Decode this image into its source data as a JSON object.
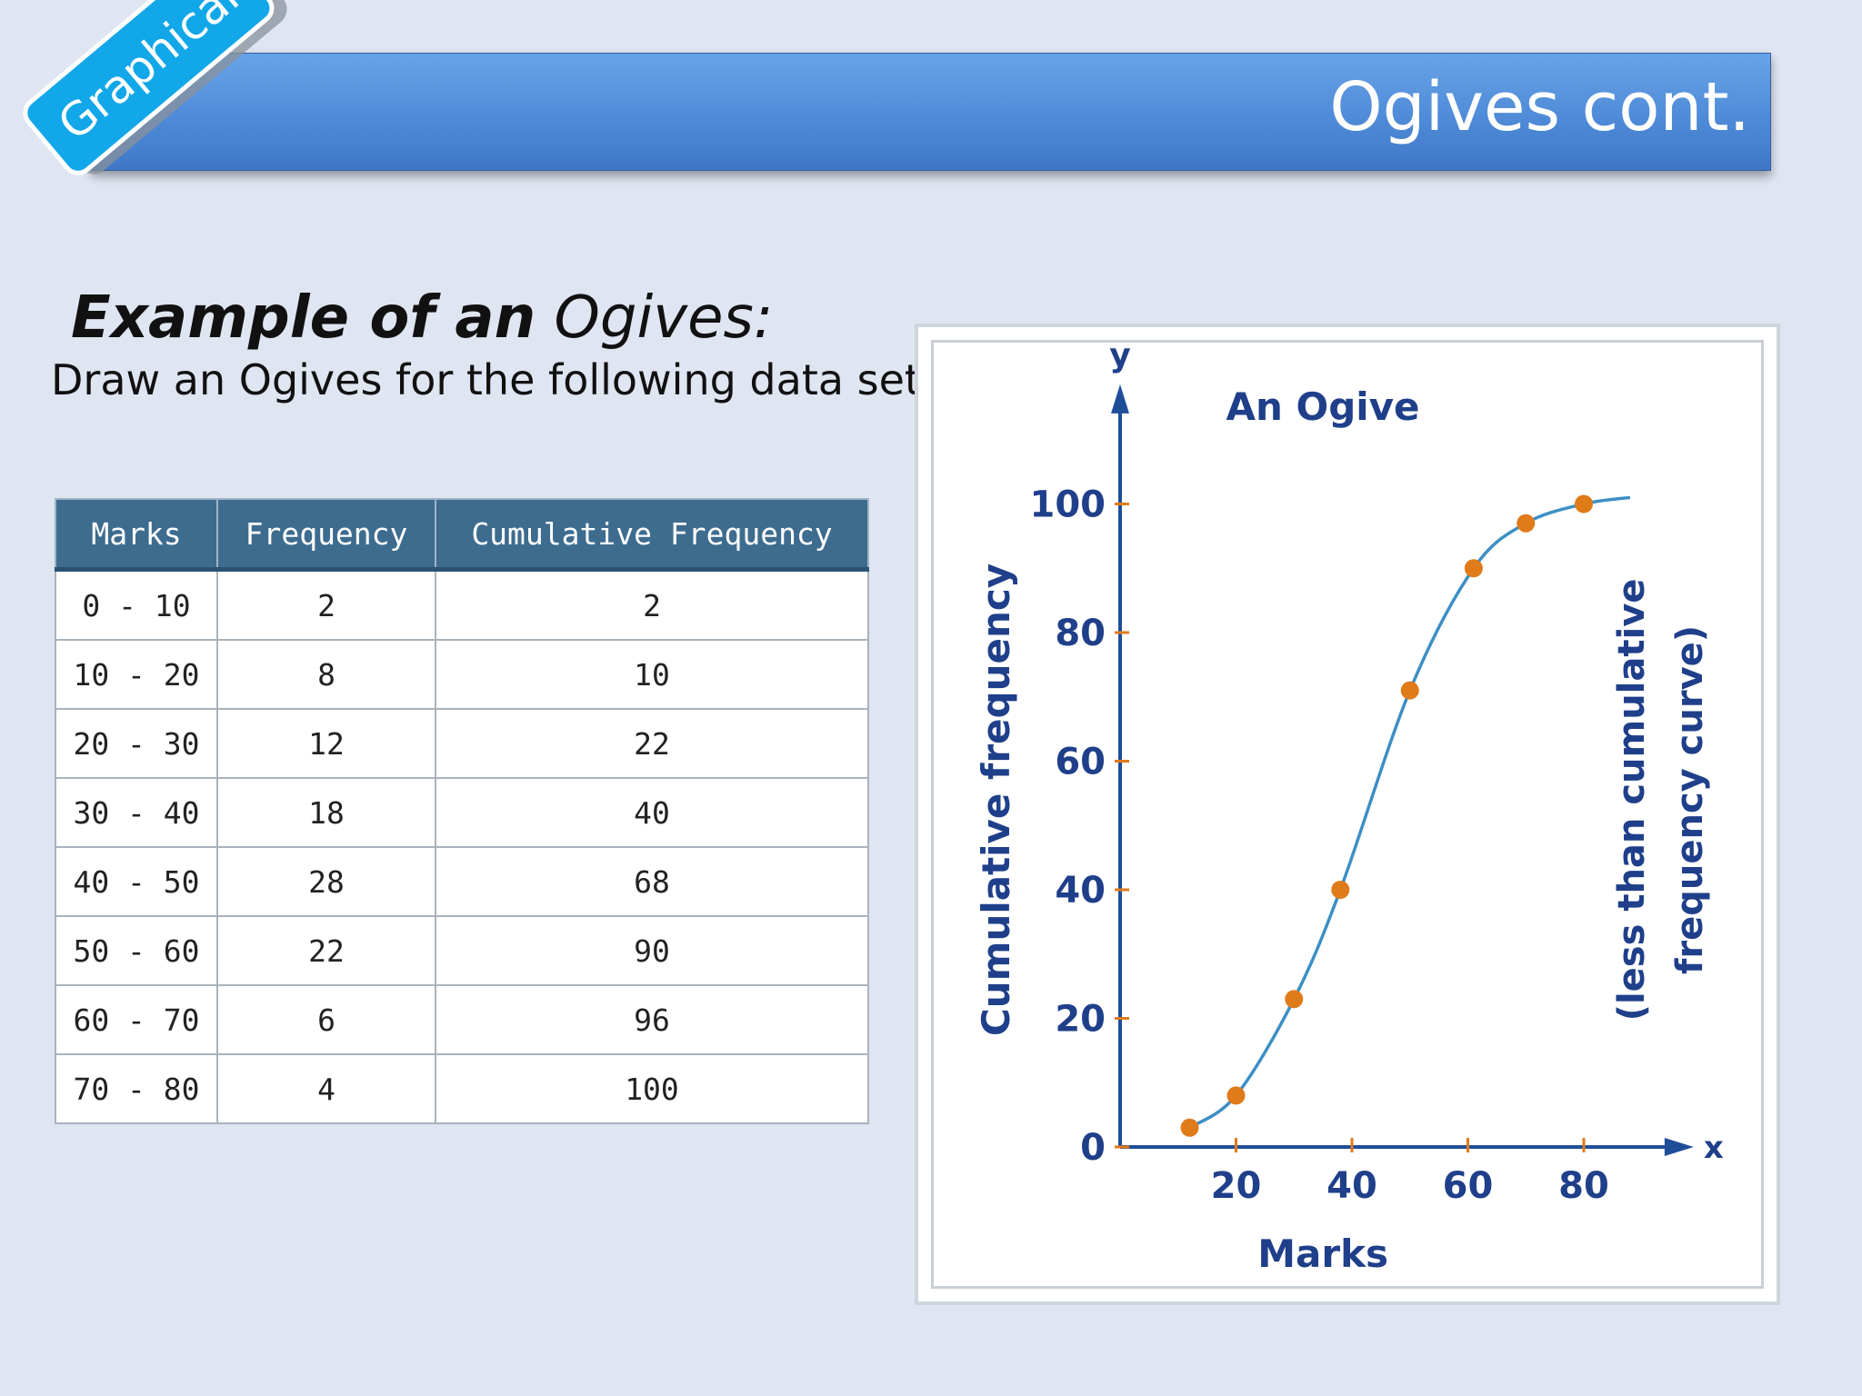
{
  "header": {
    "title": "Ogives cont.",
    "badge": "Graphical"
  },
  "example_title": {
    "bold": "Example of an",
    "rest": "Ogives:"
  },
  "instruction": "Draw an Ogives for the following data set:",
  "table": {
    "headers": [
      "Marks",
      "Frequency",
      "Cumulative Frequency"
    ],
    "rows": [
      [
        "0 - 10",
        "2",
        "2"
      ],
      [
        "10 - 20",
        "8",
        "10"
      ],
      [
        "20 -  30",
        "12",
        "22"
      ],
      [
        "30 - 40",
        "18",
        "40"
      ],
      [
        "40 - 50",
        "28",
        "68"
      ],
      [
        "50 - 60",
        "22",
        "90"
      ],
      [
        "60 - 70",
        "6",
        "96"
      ],
      [
        "70 - 80",
        "4",
        "100"
      ]
    ]
  },
  "chart_data": {
    "type": "line",
    "title": "An Ogive",
    "xlabel": "Marks",
    "ylabel": "Cumulative frequency",
    "side_label": [
      "(less than cumulative",
      "frequency curve)"
    ],
    "x_axis_letter": "x",
    "y_axis_letter": "y",
    "x_ticks": [
      20,
      40,
      60,
      80
    ],
    "y_ticks": [
      0,
      20,
      40,
      60,
      80,
      100
    ],
    "xlim": [
      0,
      93
    ],
    "ylim": [
      0,
      108
    ],
    "points": [
      {
        "x": 12,
        "y": 3
      },
      {
        "x": 20,
        "y": 8
      },
      {
        "x": 30,
        "y": 23
      },
      {
        "x": 38,
        "y": 40
      },
      {
        "x": 50,
        "y": 71
      },
      {
        "x": 61,
        "y": 90
      },
      {
        "x": 70,
        "y": 97
      },
      {
        "x": 80,
        "y": 100
      }
    ],
    "curve_end": {
      "x": 88,
      "y": 101
    },
    "line_color": "#3d8fc4",
    "marker_color": "#e07b1a",
    "axis_color": "#1f4e99",
    "text_color": "#1f3f8a",
    "grid": false
  }
}
